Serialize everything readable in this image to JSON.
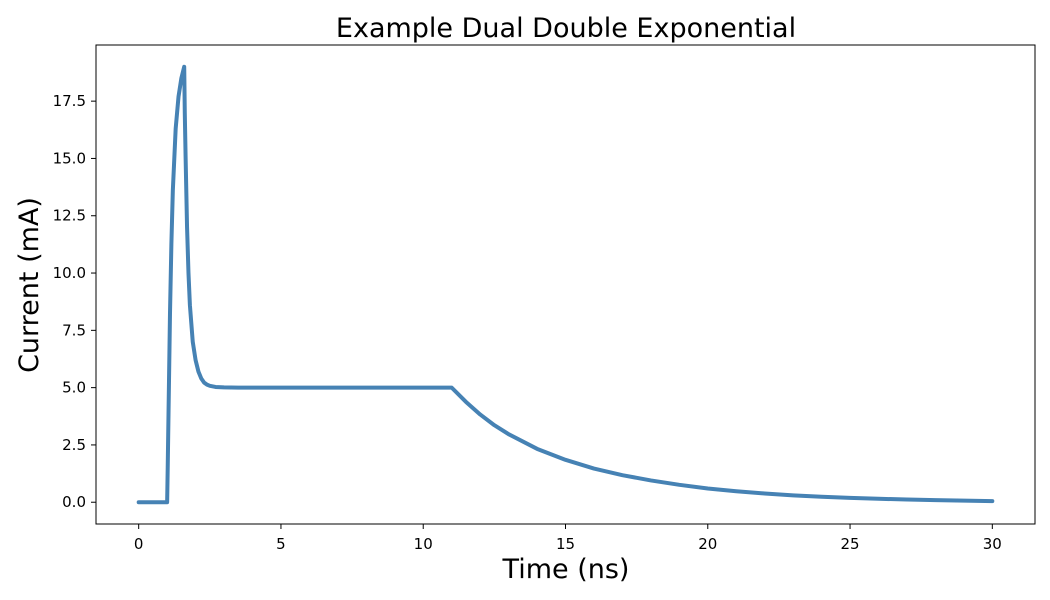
{
  "chart_data": {
    "type": "line",
    "title": "Example Dual Double Exponential",
    "xlabel": "Time (ns)",
    "ylabel": "Current (mA)",
    "xlim": [
      -1.5,
      31.5
    ],
    "ylim": [
      -0.95,
      19.95
    ],
    "xticks": [
      0,
      5,
      10,
      15,
      20,
      25,
      30
    ],
    "xtick_labels": [
      "0",
      "5",
      "10",
      "15",
      "20",
      "25",
      "30"
    ],
    "yticks": [
      0.0,
      2.5,
      5.0,
      7.5,
      10.0,
      12.5,
      15.0,
      17.5
    ],
    "ytick_labels": [
      "0.0",
      "2.5",
      "5.0",
      "7.5",
      "10.0",
      "12.5",
      "15.0",
      "17.5"
    ],
    "grid": false,
    "line_color": "#4682b4",
    "series": [
      {
        "x": [
          0,
          1.0,
          1.02,
          1.05,
          1.08,
          1.1,
          1.15,
          1.2,
          1.3,
          1.4,
          1.5,
          1.6,
          1.62,
          1.65,
          1.7,
          1.75,
          1.8,
          1.9,
          2.0,
          2.1,
          2.2,
          2.3,
          2.4,
          2.5,
          2.7,
          3.0,
          3.5,
          4,
          6,
          8,
          10,
          11,
          11.5,
          12,
          12.5,
          13,
          14,
          15,
          16,
          17,
          18,
          19,
          20,
          21,
          22,
          23,
          24,
          25,
          26,
          27,
          28,
          29,
          30
        ],
        "y": [
          0,
          0,
          1.5,
          4.0,
          6.5,
          8.2,
          11.3,
          13.6,
          16.3,
          17.7,
          18.5,
          19.0,
          17.0,
          15.0,
          12.0,
          10.0,
          8.6,
          7.0,
          6.2,
          5.7,
          5.4,
          5.22,
          5.13,
          5.08,
          5.03,
          5.01,
          5.0,
          5.0,
          5.0,
          5.0,
          5.0,
          5.0,
          4.38,
          3.83,
          3.36,
          2.97,
          2.33,
          1.85,
          1.47,
          1.18,
          0.95,
          0.76,
          0.6,
          0.48,
          0.38,
          0.3,
          0.24,
          0.19,
          0.15,
          0.12,
          0.09,
          0.07,
          0.05
        ]
      }
    ]
  }
}
